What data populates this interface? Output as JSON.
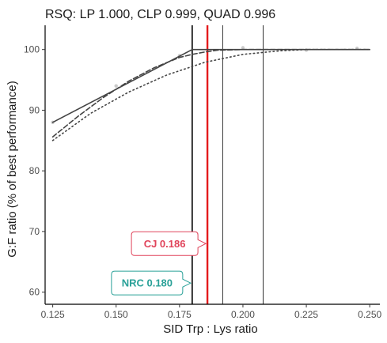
{
  "chart_data": {
    "type": "line",
    "title": "RSQ: LP 1.000, CLP 0.999, QUAD 0.996",
    "xlabel": "SID Trp : Lys ratio",
    "ylabel": "G:F ratio (% of best performance)",
    "xlim": [
      0.122,
      0.254
    ],
    "ylim": [
      58,
      104
    ],
    "x_ticks": [
      "0.125",
      "0.150",
      "0.175",
      "0.200",
      "0.225",
      "0.250"
    ],
    "x_tick_values": [
      0.125,
      0.15,
      0.175,
      0.2,
      0.225,
      0.25
    ],
    "y_ticks": [
      "60",
      "70",
      "80",
      "90",
      "100"
    ],
    "y_tick_values": [
      60,
      70,
      80,
      90,
      100
    ],
    "grid": false,
    "series": [
      {
        "style": "solid",
        "color": "#444444",
        "x": [
          0.125,
          0.18,
          0.25
        ],
        "y": [
          88.0,
          100.0,
          100.0
        ]
      },
      {
        "style": "dashed",
        "color": "#444444",
        "x": [
          0.125,
          0.135,
          0.145,
          0.155,
          0.165,
          0.175,
          0.18,
          0.185,
          0.19,
          0.2,
          0.25
        ],
        "y": [
          85.6,
          89.0,
          92.1,
          94.8,
          97.0,
          98.7,
          99.2,
          99.6,
          99.9,
          100.0,
          100.0
        ]
      },
      {
        "style": "dotted",
        "color": "#444444",
        "x": [
          0.125,
          0.14,
          0.155,
          0.17,
          0.185,
          0.2,
          0.215,
          0.225,
          0.25
        ],
        "y": [
          85.0,
          89.5,
          93.0,
          95.8,
          97.9,
          99.2,
          99.8,
          100.0,
          100.0
        ]
      }
    ],
    "points": {
      "color": "#bdbdbd",
      "x": [
        0.125,
        0.15,
        0.175,
        0.2,
        0.225,
        0.245
      ],
      "y": [
        88.0,
        94.0,
        99.0,
        100.3,
        99.9,
        100.2
      ]
    },
    "vlines": [
      {
        "x": 0.18,
        "color": "#000000",
        "width": 1.6
      },
      {
        "x": 0.186,
        "color": "#e41a1c",
        "width": 2.4
      },
      {
        "x": 0.192,
        "color": "#000000",
        "width": 0.8
      },
      {
        "x": 0.208,
        "color": "#000000",
        "width": 0.8
      }
    ],
    "annotations": [
      {
        "text": "CJ 0.186",
        "color": "#e0435a",
        "x": 0.186,
        "y": 68.0
      },
      {
        "text": "NRC 0.180",
        "color": "#2aa198",
        "x": 0.18,
        "y": 61.5
      }
    ]
  }
}
